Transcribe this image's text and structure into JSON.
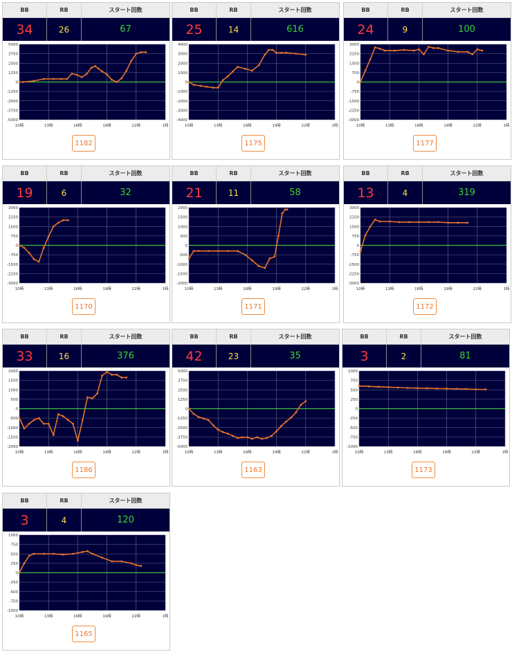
{
  "headers": {
    "bb": "BB",
    "rb": "RB",
    "start": "スタート回数"
  },
  "x_ticks": [
    "10時",
    "13時",
    "16時",
    "19時",
    "22時",
    "1時"
  ],
  "colors": {
    "bb": "#ff3b3b",
    "rb": "#ffe24a",
    "start": "#38d430",
    "line": "#e8742a",
    "zero_line": "#3cc13c",
    "plot_bg": "#00003a"
  },
  "machines": [
    {
      "machine_no": "1182",
      "bb": "34",
      "rb": "26",
      "start": "67",
      "chart_data": {
        "type": "line",
        "ylim": [
          -5000,
          5000
        ],
        "yticks": [
          "5000",
          "3750",
          "2500",
          "1250",
          "0",
          "-1250",
          "-2500",
          "-3750",
          "-5000"
        ],
        "x": [
          10.0,
          10.4,
          11.5,
          12.5,
          13.5,
          14.3,
          14.9,
          15.4,
          15.9,
          16.4,
          16.9,
          17.4,
          17.8,
          18.1,
          18.5,
          19.0,
          19.5,
          20.0,
          20.5,
          21.0,
          21.5,
          22.0,
          22.5,
          23.0
        ],
        "values": [
          0,
          0,
          150,
          400,
          400,
          400,
          400,
          1100,
          950,
          650,
          1050,
          1900,
          2100,
          1800,
          1400,
          1000,
          300,
          0,
          500,
          1500,
          2800,
          3750,
          3950,
          3950
        ]
      }
    },
    {
      "machine_no": "1175",
      "bb": "25",
      "rb": "14",
      "start": "616",
      "chart_data": {
        "type": "line",
        "ylim": [
          -4000,
          4000
        ],
        "yticks": [
          "4000",
          "3000",
          "2000",
          "1000",
          "0",
          "-1000",
          "-2000",
          "-3000",
          "-4000"
        ],
        "x": [
          10.0,
          10.5,
          11.2,
          11.8,
          12.5,
          13.0,
          13.5,
          14.0,
          14.5,
          15.0,
          15.8,
          16.5,
          17.2,
          17.8,
          18.2,
          18.6,
          19.0,
          19.5,
          20.0,
          21.0,
          22.0
        ],
        "values": [
          0,
          -300,
          -400,
          -500,
          -600,
          -600,
          200,
          600,
          1100,
          1600,
          1400,
          1200,
          1800,
          2900,
          3400,
          3400,
          3100,
          3100,
          3100,
          3000,
          2900
        ]
      }
    },
    {
      "machine_no": "1177",
      "bb": "24",
      "rb": "9",
      "start": "100",
      "chart_data": {
        "type": "line",
        "ylim": [
          -3000,
          3000
        ],
        "yticks": [
          "3000",
          "2250",
          "1500",
          "750",
          "0",
          "-750",
          "-1500",
          "-2250",
          "-3000"
        ],
        "x": [
          10.0,
          10.5,
          11.0,
          11.5,
          12.0,
          12.5,
          13.5,
          14.5,
          15.5,
          16.0,
          16.5,
          17.0,
          17.5,
          18.0,
          19.0,
          20.0,
          21.0,
          21.5,
          22.0,
          22.5
        ],
        "values": [
          0,
          900,
          1800,
          2750,
          2650,
          2500,
          2500,
          2550,
          2500,
          2600,
          2200,
          2800,
          2700,
          2700,
          2500,
          2400,
          2400,
          2200,
          2600,
          2500
        ]
      }
    },
    {
      "machine_no": "1170",
      "bb": "19",
      "rb": "6",
      "start": "32",
      "chart_data": {
        "type": "line",
        "ylim": [
          -3000,
          3000
        ],
        "yticks": [
          "3000",
          "2250",
          "1500",
          "750",
          "0",
          "-750",
          "-1500",
          "-2250",
          "-3000"
        ],
        "x": [
          10.0,
          10.5,
          11.0,
          11.5,
          12.0,
          12.5,
          13.0,
          13.5,
          14.0,
          14.5,
          15.0
        ],
        "values": [
          0,
          -200,
          -600,
          -1100,
          -1300,
          -200,
          700,
          1500,
          1800,
          2000,
          2000
        ]
      }
    },
    {
      "machine_no": "1171",
      "bb": "21",
      "rb": "11",
      "start": "58",
      "chart_data": {
        "type": "line",
        "ylim": [
          -2000,
          2000
        ],
        "yticks": [
          "2000",
          "1500",
          "1000",
          "500",
          "0",
          "-500",
          "-1000",
          "-1500",
          "-2000"
        ],
        "x": [
          10.0,
          10.5,
          11.0,
          12.0,
          13.0,
          14.0,
          15.0,
          15.8,
          16.5,
          17.2,
          17.8,
          18.3,
          18.8,
          19.2,
          19.6,
          19.9,
          20.1
        ],
        "values": [
          -700,
          -300,
          -300,
          -300,
          -300,
          -300,
          -300,
          -500,
          -800,
          -1100,
          -1200,
          -700,
          -600,
          500,
          1700,
          1900,
          1900
        ]
      }
    },
    {
      "machine_no": "1172",
      "bb": "13",
      "rb": "4",
      "start": "319",
      "chart_data": {
        "type": "line",
        "ylim": [
          -3000,
          3000
        ],
        "yticks": [
          "3000",
          "2250",
          "1500",
          "750",
          "0",
          "-750",
          "-1500",
          "-2250",
          "-3000"
        ],
        "x": [
          10.0,
          10.5,
          11.0,
          11.5,
          12.0,
          13.0,
          14.0,
          15.0,
          16.0,
          17.0,
          18.0,
          19.0,
          20.0,
          21.0
        ],
        "values": [
          -500,
          800,
          1500,
          2050,
          1900,
          1900,
          1850,
          1850,
          1850,
          1850,
          1850,
          1800,
          1800,
          1800
        ]
      }
    },
    {
      "machine_no": "1186",
      "bb": "33",
      "rb": "16",
      "start": "376",
      "chart_data": {
        "type": "line",
        "ylim": [
          -2000,
          2000
        ],
        "yticks": [
          "2000",
          "1500",
          "1000",
          "500",
          "0",
          "-500",
          "-1000",
          "-1500",
          "-2000"
        ],
        "x": [
          10.0,
          10.5,
          11.0,
          11.5,
          12.0,
          12.5,
          13.0,
          13.5,
          14.0,
          14.5,
          15.0,
          15.5,
          16.0,
          16.5,
          17.0,
          17.5,
          18.0,
          18.5,
          19.0,
          19.5,
          20.0,
          20.5,
          21.0
        ],
        "values": [
          -500,
          -1050,
          -800,
          -600,
          -500,
          -800,
          -800,
          -1400,
          -300,
          -400,
          -600,
          -800,
          -1700,
          -600,
          600,
          550,
          800,
          1750,
          1950,
          1800,
          1800,
          1650,
          1650
        ]
      }
    },
    {
      "machine_no": "1163",
      "bb": "42",
      "rb": "23",
      "start": "35",
      "chart_data": {
        "type": "line",
        "ylim": [
          -5000,
          5000
        ],
        "yticks": [
          "5000",
          "3750",
          "2500",
          "1250",
          "0",
          "-1250",
          "-2500",
          "-3750",
          "-5000"
        ],
        "x": [
          10.0,
          10.5,
          11.0,
          11.5,
          12.0,
          12.5,
          13.0,
          13.5,
          14.0,
          14.5,
          15.0,
          15.5,
          16.0,
          16.5,
          17.0,
          17.5,
          18.0,
          18.5,
          19.0,
          19.5,
          20.0,
          20.5,
          21.0,
          21.5,
          22.0
        ],
        "values": [
          0,
          -700,
          -1100,
          -1300,
          -1500,
          -2200,
          -2800,
          -3100,
          -3300,
          -3600,
          -3900,
          -3800,
          -3800,
          -4000,
          -3800,
          -4000,
          -3900,
          -3600,
          -3000,
          -2300,
          -1700,
          -1200,
          -500,
          500,
          1000
        ]
      }
    },
    {
      "machine_no": "1173",
      "bb": "3",
      "rb": "2",
      "start": "81",
      "chart_data": {
        "type": "line",
        "ylim": [
          -1000,
          1000
        ],
        "yticks": [
          "1000",
          "750",
          "500",
          "250",
          "0",
          "-250",
          "-500",
          "-750",
          "-1000"
        ],
        "x": [
          10.0,
          11.0,
          12.0,
          13.0,
          14.0,
          15.0,
          16.0,
          17.0,
          18.0,
          19.0,
          20.0,
          21.0,
          22.0,
          23.0
        ],
        "values": [
          600,
          590,
          580,
          570,
          560,
          550,
          545,
          540,
          535,
          530,
          525,
          520,
          510,
          510
        ]
      }
    },
    {
      "machine_no": "1165",
      "bb": "3",
      "rb": "4",
      "start": "120",
      "chart_data": {
        "type": "line",
        "ylim": [
          -1000,
          1000
        ],
        "yticks": [
          "1000",
          "750",
          "500",
          "250",
          "0",
          "-250",
          "-500",
          "-750",
          "-1000"
        ],
        "x": [
          10.0,
          10.5,
          11.0,
          11.5,
          12.5,
          13.5,
          14.5,
          15.5,
          16.5,
          17.0,
          17.5,
          18.5,
          19.5,
          20.5,
          21.5,
          22.0,
          22.5
        ],
        "values": [
          0,
          250,
          450,
          500,
          500,
          500,
          480,
          500,
          550,
          570,
          500,
          400,
          300,
          300,
          250,
          200,
          180
        ]
      }
    }
  ]
}
